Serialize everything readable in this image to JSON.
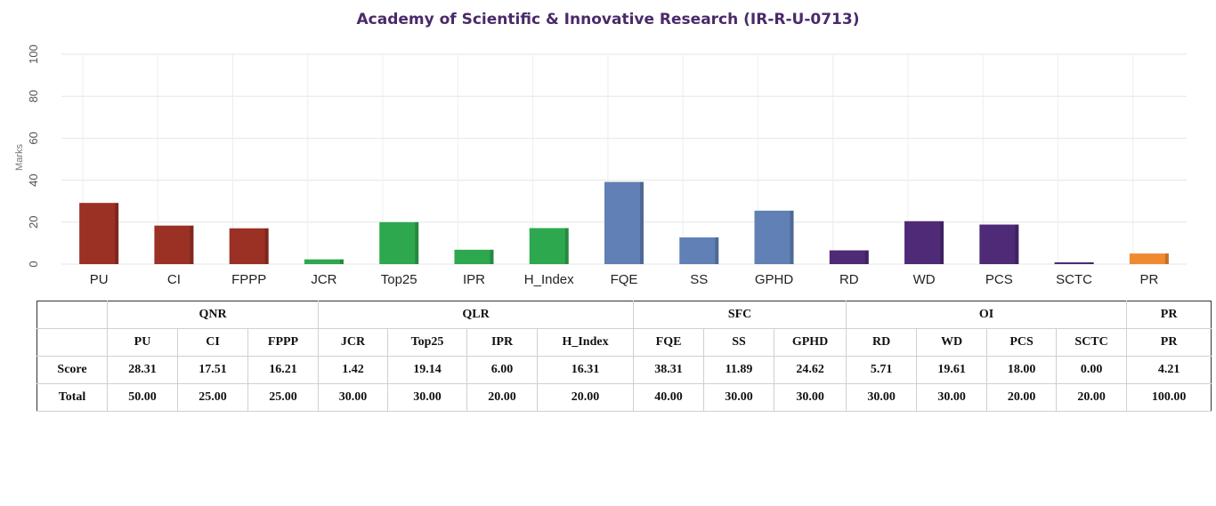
{
  "chart_data": {
    "type": "bar",
    "title": "Academy of Scientific & Innovative Research (IR-R-U-0713)",
    "ylabel": "Marks",
    "xlabel": "",
    "ylim": [
      0,
      100
    ],
    "yticks": [
      0,
      20,
      40,
      60,
      80,
      100
    ],
    "grid": true,
    "categories": [
      "PU",
      "CI",
      "FPPP",
      "JCR",
      "Top25",
      "IPR",
      "H_Index",
      "FQE",
      "SS",
      "GPHD",
      "RD",
      "WD",
      "PCS",
      "SCTC",
      "PR"
    ],
    "values": [
      28.31,
      17.51,
      16.21,
      1.42,
      19.14,
      6.0,
      16.31,
      38.31,
      11.89,
      24.62,
      5.71,
      19.61,
      18.0,
      0.0,
      4.21
    ],
    "groups": [
      "QNR",
      "QNR",
      "QNR",
      "QLR",
      "QLR",
      "QLR",
      "QLR",
      "SFC",
      "SFC",
      "SFC",
      "OI",
      "OI",
      "OI",
      "OI",
      "PR"
    ],
    "colors": {
      "QNR": "#9b3025",
      "QLR": "#2ea84e",
      "SFC": "#6080b6",
      "OI": "#4e2a77",
      "PR": "#f08a32"
    }
  },
  "table": {
    "group_headers": [
      {
        "label": "QNR",
        "span": 3
      },
      {
        "label": "QLR",
        "span": 4
      },
      {
        "label": "SFC",
        "span": 3
      },
      {
        "label": "OI",
        "span": 4
      },
      {
        "label": "PR",
        "span": 1
      }
    ],
    "sub_headers": [
      "PU",
      "CI",
      "FPPP",
      "JCR",
      "Top25",
      "IPR",
      "H_Index",
      "FQE",
      "SS",
      "GPHD",
      "RD",
      "WD",
      "PCS",
      "SCTC",
      "PR"
    ],
    "rows": [
      {
        "label": "Score",
        "cells": [
          "28.31",
          "17.51",
          "16.21",
          "1.42",
          "19.14",
          "6.00",
          "16.31",
          "38.31",
          "11.89",
          "24.62",
          "5.71",
          "19.61",
          "18.00",
          "0.00",
          "4.21"
        ]
      },
      {
        "label": "Total",
        "cells": [
          "50.00",
          "25.00",
          "25.00",
          "30.00",
          "30.00",
          "20.00",
          "20.00",
          "40.00",
          "30.00",
          "30.00",
          "30.00",
          "30.00",
          "20.00",
          "20.00",
          "100.00"
        ]
      }
    ]
  }
}
